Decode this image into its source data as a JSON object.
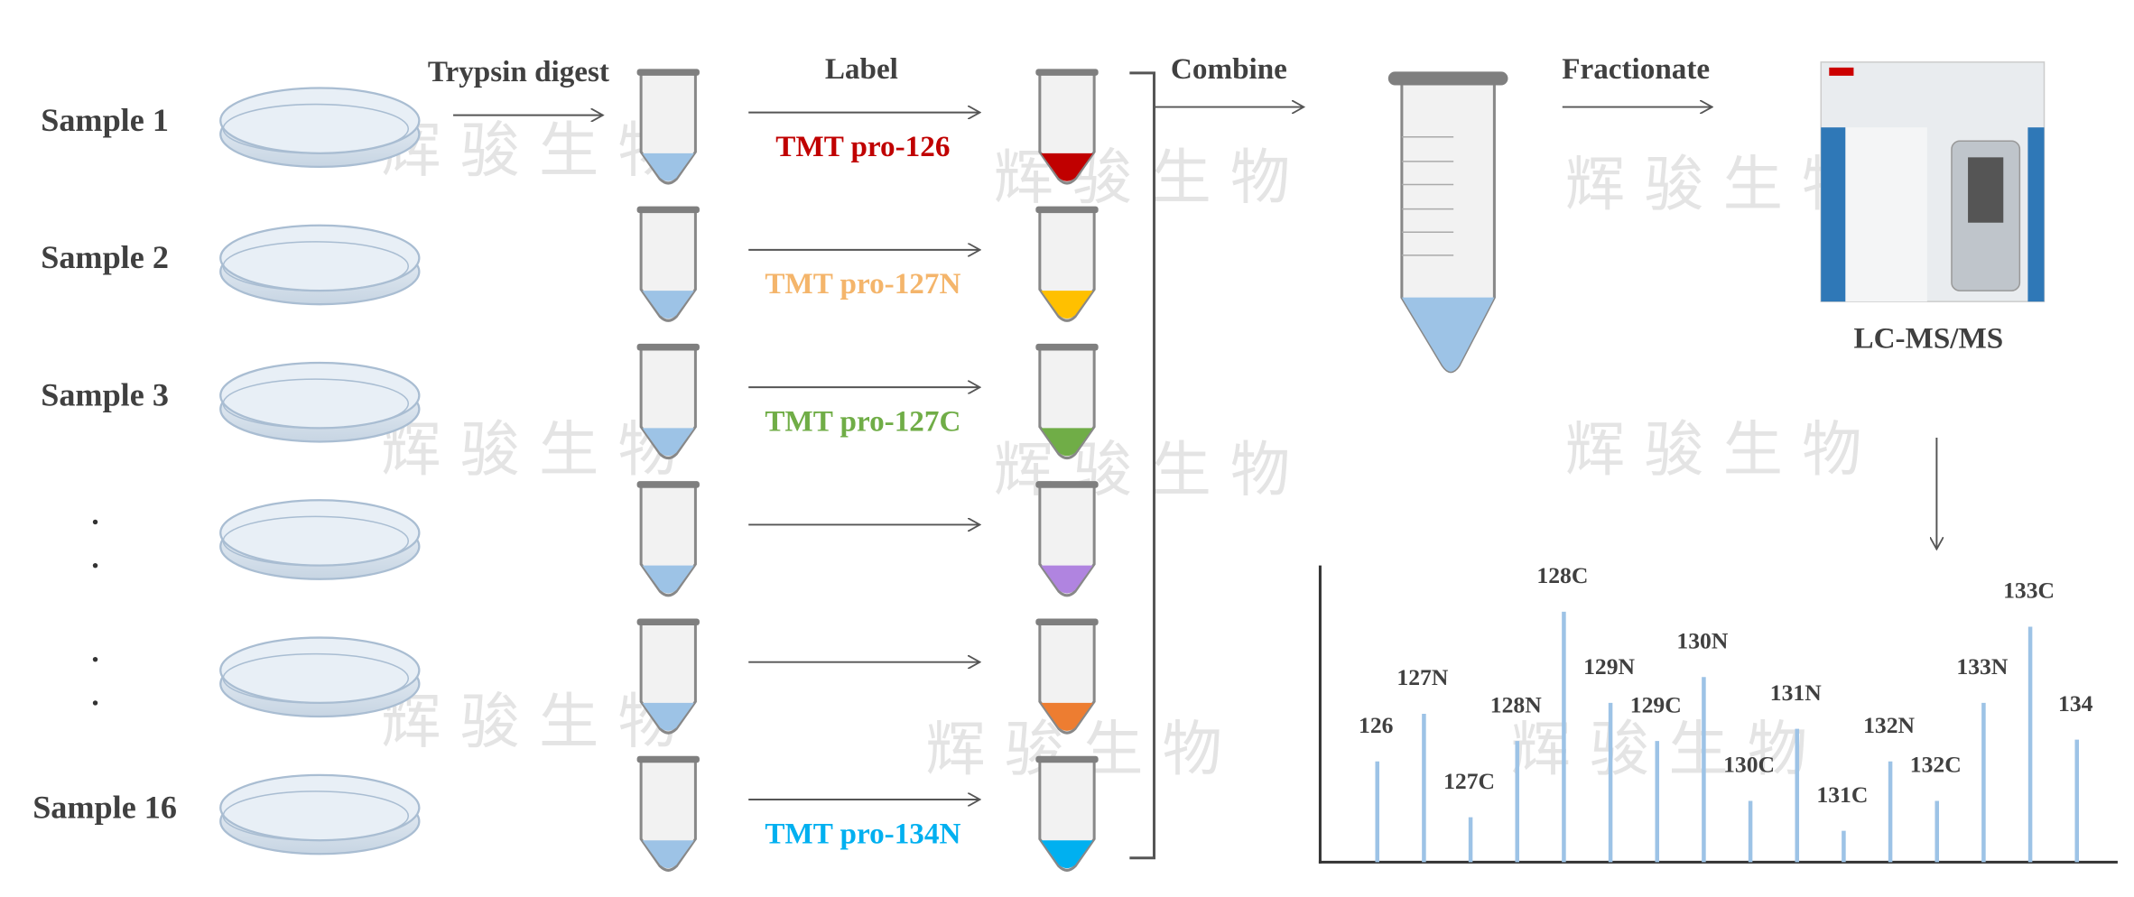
{
  "steps": {
    "digest": "Trypsin  digest",
    "label": "Label",
    "combine": "Combine",
    "fractionate": "Fractionate",
    "instrument": "LC-MS/MS"
  },
  "watermark": "辉骏生物",
  "rows": [
    {
      "sample": "Sample 1",
      "label": "TMT pro-126",
      "label_color": "#c00000",
      "tube_color": "#c00000"
    },
    {
      "sample": "Sample 2",
      "label": "TMT pro-127N",
      "label_color": "#f4b56b",
      "tube_color": "#ffc000"
    },
    {
      "sample": "Sample 3",
      "label": "TMT pro-127C",
      "label_color": "#70ad47",
      "tube_color": "#70ad47"
    },
    {
      "tube_color": "#b084e0"
    },
    {
      "tube_color": "#ed7d31"
    },
    {
      "sample": "Sample 16",
      "label": "TMT pro-134N",
      "label_color": "#00b0f0",
      "tube_color": "#00b0f0"
    }
  ],
  "spectrum": {
    "color": "#9dc3e6",
    "peaks": [
      {
        "label": "126",
        "intensity": 74
      },
      {
        "label": "127N",
        "intensity": 109
      },
      {
        "label": "127C",
        "intensity": 33
      },
      {
        "label": "128N",
        "intensity": 89
      },
      {
        "label": "128C",
        "intensity": 184
      },
      {
        "label": "129N",
        "intensity": 117
      },
      {
        "label": "129C",
        "intensity": 89
      },
      {
        "label": "130N",
        "intensity": 136
      },
      {
        "label": "130C",
        "intensity": 45
      },
      {
        "label": "131N",
        "intensity": 98
      },
      {
        "label": "131C",
        "intensity": 23
      },
      {
        "label": "132N",
        "intensity": 74
      },
      {
        "label": "132C",
        "intensity": 45
      },
      {
        "label": "133N",
        "intensity": 117
      },
      {
        "label": "133C",
        "intensity": 173
      },
      {
        "label": "134",
        "intensity": 90
      }
    ]
  }
}
